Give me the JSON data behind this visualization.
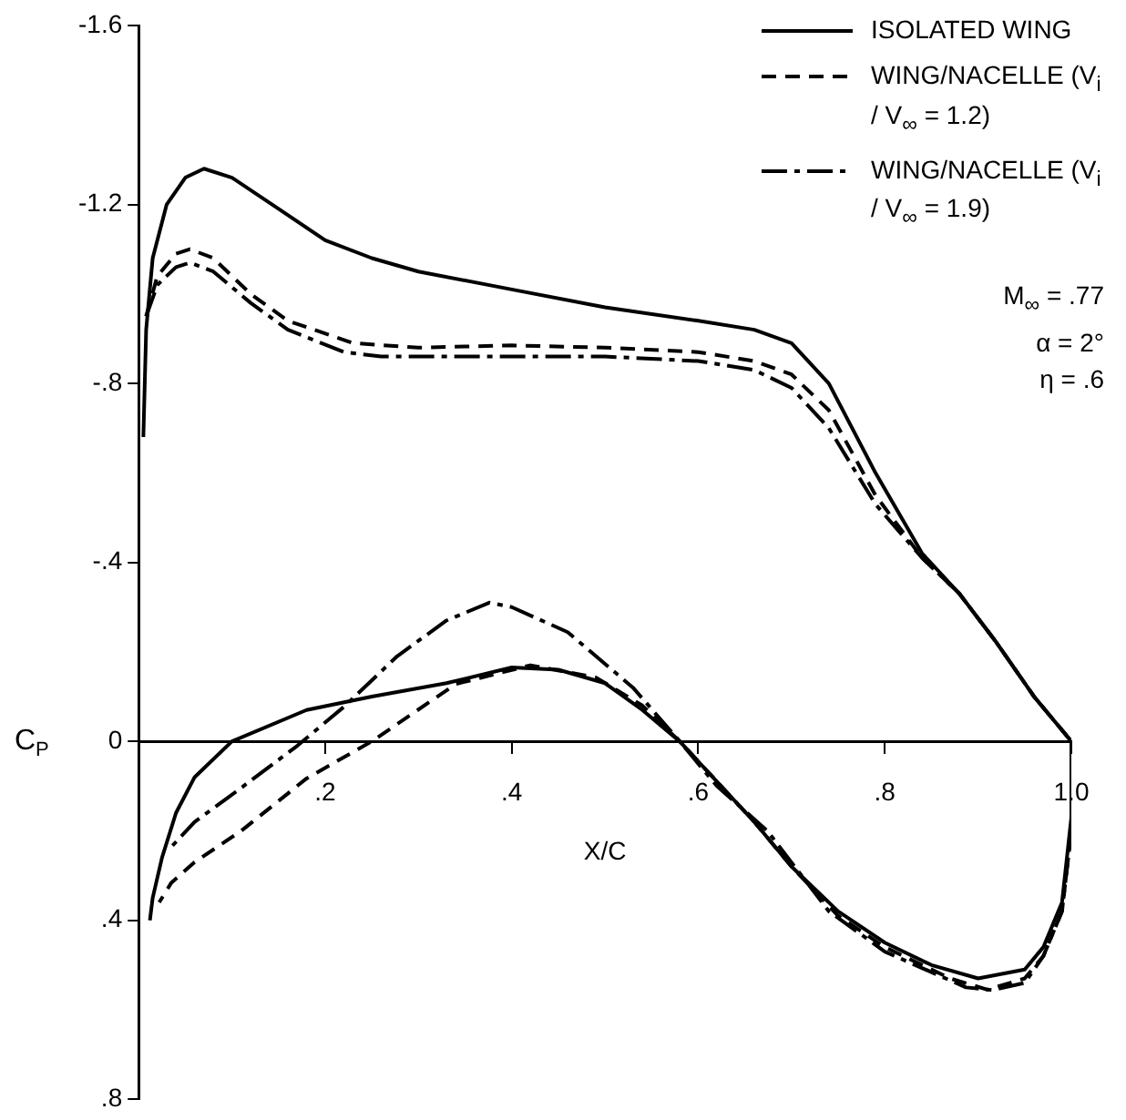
{
  "chart_data": {
    "type": "line",
    "xlabel": "X/C",
    "ylabel": "C$_{P}$",
    "xlim": [
      0,
      1.0
    ],
    "xticks": [
      {
        "value": 0.2,
        "label": ".2"
      },
      {
        "value": 0.4,
        "label": ".4"
      },
      {
        "value": 0.6,
        "label": ".6"
      },
      {
        "value": 0.8,
        "label": ".8"
      },
      {
        "value": 1.0,
        "label": "1.0"
      }
    ],
    "ylim": [
      0.8,
      -1.6
    ],
    "yticks": [
      {
        "value": -1.6,
        "label": "-1.6"
      },
      {
        "value": -1.2,
        "label": "-1.2"
      },
      {
        "value": -0.8,
        "label": "-.8"
      },
      {
        "value": -0.4,
        "label": "-.4"
      },
      0,
      {
        "value": 0.4,
        "label": ".4"
      },
      {
        "value": 0.8,
        "label": ".8"
      }
    ],
    "grid": false,
    "legend": "top right",
    "marker": "none",
    "annotations": [
      "M$_{∞}$ = .77",
      "α = 2°",
      "η = .6"
    ],
    "series": [
      {
        "name": "ISOLATED WING",
        "color": "#000000",
        "line_style": "solid",
        "x": [
          0.005,
          0.008,
          0.015,
          0.03,
          0.05,
          0.07,
          0.1,
          0.15,
          0.2,
          0.25,
          0.3,
          0.4,
          0.5,
          0.6,
          0.66,
          0.7,
          0.74,
          0.79,
          0.84,
          0.88,
          0.92,
          0.96,
          1.0,
          1.0,
          0.99,
          0.97,
          0.95,
          0.9,
          0.85,
          0.8,
          0.75,
          0.7,
          0.66,
          0.62,
          0.58,
          0.54,
          0.5,
          0.45,
          0.4,
          0.33,
          0.25,
          0.18,
          0.1,
          0.06,
          0.04,
          0.025,
          0.015,
          0.012
        ],
        "values": [
          -0.68,
          -0.92,
          -1.08,
          -1.2,
          -1.26,
          -1.28,
          -1.26,
          -1.19,
          -1.12,
          -1.08,
          -1.05,
          -1.01,
          -0.97,
          -0.94,
          -0.92,
          -0.89,
          -0.8,
          -0.6,
          -0.42,
          -0.33,
          -0.22,
          -0.1,
          0,
          0.17,
          0.36,
          0.46,
          0.51,
          0.53,
          0.5,
          0.45,
          0.38,
          0.28,
          0.18,
          0.09,
          0,
          -0.07,
          -0.13,
          -0.16,
          -0.165,
          -0.13,
          -0.1,
          -0.07,
          0,
          0.08,
          0.16,
          0.26,
          0.35,
          0.4
        ]
      },
      {
        "name": "WING/NACELLE (V$_{i}$ / V$_{∞}$ = 1.2)",
        "color": "#000000",
        "line_style": "dashed",
        "x": [
          0.008,
          0.02,
          0.04,
          0.055,
          0.08,
          0.12,
          0.16,
          0.23,
          0.3,
          0.4,
          0.5,
          0.6,
          0.66,
          0.7,
          0.74,
          0.79,
          0.84,
          0.88,
          0.92,
          0.96,
          1.0,
          1.0,
          0.99,
          0.97,
          0.95,
          0.91,
          0.87,
          0.8,
          0.75,
          0.7,
          0.66,
          0.62,
          0.58,
          0.54,
          0.49,
          0.42,
          0.34,
          0.25,
          0.18,
          0.11,
          0.06,
          0.035,
          0.022
        ],
        "values": [
          -0.95,
          -1.04,
          -1.09,
          -1.1,
          -1.08,
          -1.0,
          -0.94,
          -0.89,
          -0.88,
          -0.885,
          -0.88,
          -0.87,
          -0.85,
          -0.82,
          -0.74,
          -0.55,
          -0.41,
          -0.33,
          -0.22,
          -0.1,
          0,
          0.2,
          0.38,
          0.48,
          0.53,
          0.555,
          0.53,
          0.46,
          0.39,
          0.28,
          0.18,
          0.09,
          0,
          -0.08,
          -0.143,
          -0.17,
          -0.128,
          0,
          0.083,
          0.2,
          0.27,
          0.316,
          0.36
        ]
      },
      {
        "name": "WING/NACELLE (V$_{i}$ / V$_{∞}$ = 1.9)",
        "color": "#000000",
        "line_style": "dashdot",
        "x": [
          0.008,
          0.02,
          0.04,
          0.055,
          0.08,
          0.12,
          0.16,
          0.22,
          0.26,
          0.4,
          0.5,
          0.6,
          0.66,
          0.7,
          0.74,
          0.79,
          0.84,
          0.88,
          0.92,
          0.96,
          1.0,
          1.0,
          0.99,
          0.97,
          0.95,
          0.915,
          0.887,
          0.8,
          0.74,
          0.674,
          0.62,
          0.58,
          0.53,
          0.46,
          0.4,
          0.376,
          0.33,
          0.277,
          0.22,
          0.17,
          0.106,
          0.06,
          0.035
        ],
        "values": [
          -0.95,
          -1.02,
          -1.06,
          -1.07,
          -1.05,
          -0.98,
          -0.92,
          -0.87,
          -0.86,
          -0.86,
          -0.86,
          -0.85,
          -0.83,
          -0.79,
          -0.7,
          -0.53,
          -0.41,
          -0.33,
          -0.22,
          -0.1,
          0,
          0.2,
          0.38,
          0.48,
          0.54,
          0.556,
          0.55,
          0.47,
          0.38,
          0.2,
          0.1,
          0,
          -0.12,
          -0.244,
          -0.3,
          -0.31,
          -0.27,
          -0.19,
          -0.077,
          0.01,
          0.11,
          0.18,
          0.236
        ]
      }
    ]
  }
}
